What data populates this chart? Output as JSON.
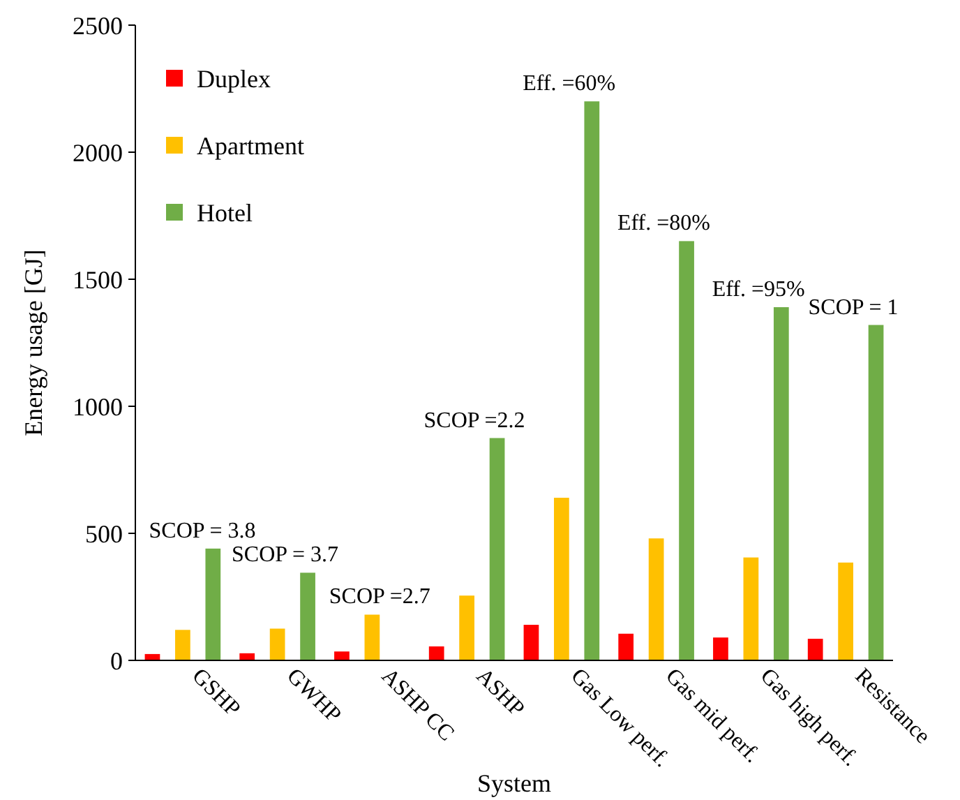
{
  "chart_data": {
    "type": "bar",
    "xlabel": "System",
    "ylabel": "Energy usage [GJ]",
    "categories": [
      "GSHP",
      "GWHP",
      "ASHP CC",
      "ASHP",
      "Gas Low perf.",
      "Gas mid perf.",
      "Gas high perf.",
      "Resistance"
    ],
    "series": [
      {
        "name": "Duplex",
        "color": "#ff0000",
        "values": [
          25,
          28,
          35,
          55,
          140,
          105,
          90,
          85
        ]
      },
      {
        "name": "Apartment",
        "color": "#ffc000",
        "values": [
          120,
          125,
          180,
          255,
          640,
          480,
          405,
          385
        ]
      },
      {
        "name": "Hotel",
        "color": "#70ad47",
        "values": [
          440,
          345,
          null,
          875,
          2200,
          1650,
          1390,
          1320
        ]
      }
    ],
    "ylim": [
      0,
      2500
    ],
    "yticks": [
      0,
      500,
      1000,
      1500,
      2000,
      2500
    ],
    "grid": false,
    "legend": "top left",
    "annotations": [
      "SCOP = 3.8",
      "SCOP = 3.7",
      "SCOP =2.7",
      "SCOP =2.2",
      "Eff. =60%",
      "Eff. =80%",
      "Eff. =95%",
      "SCOP = 1"
    ]
  }
}
